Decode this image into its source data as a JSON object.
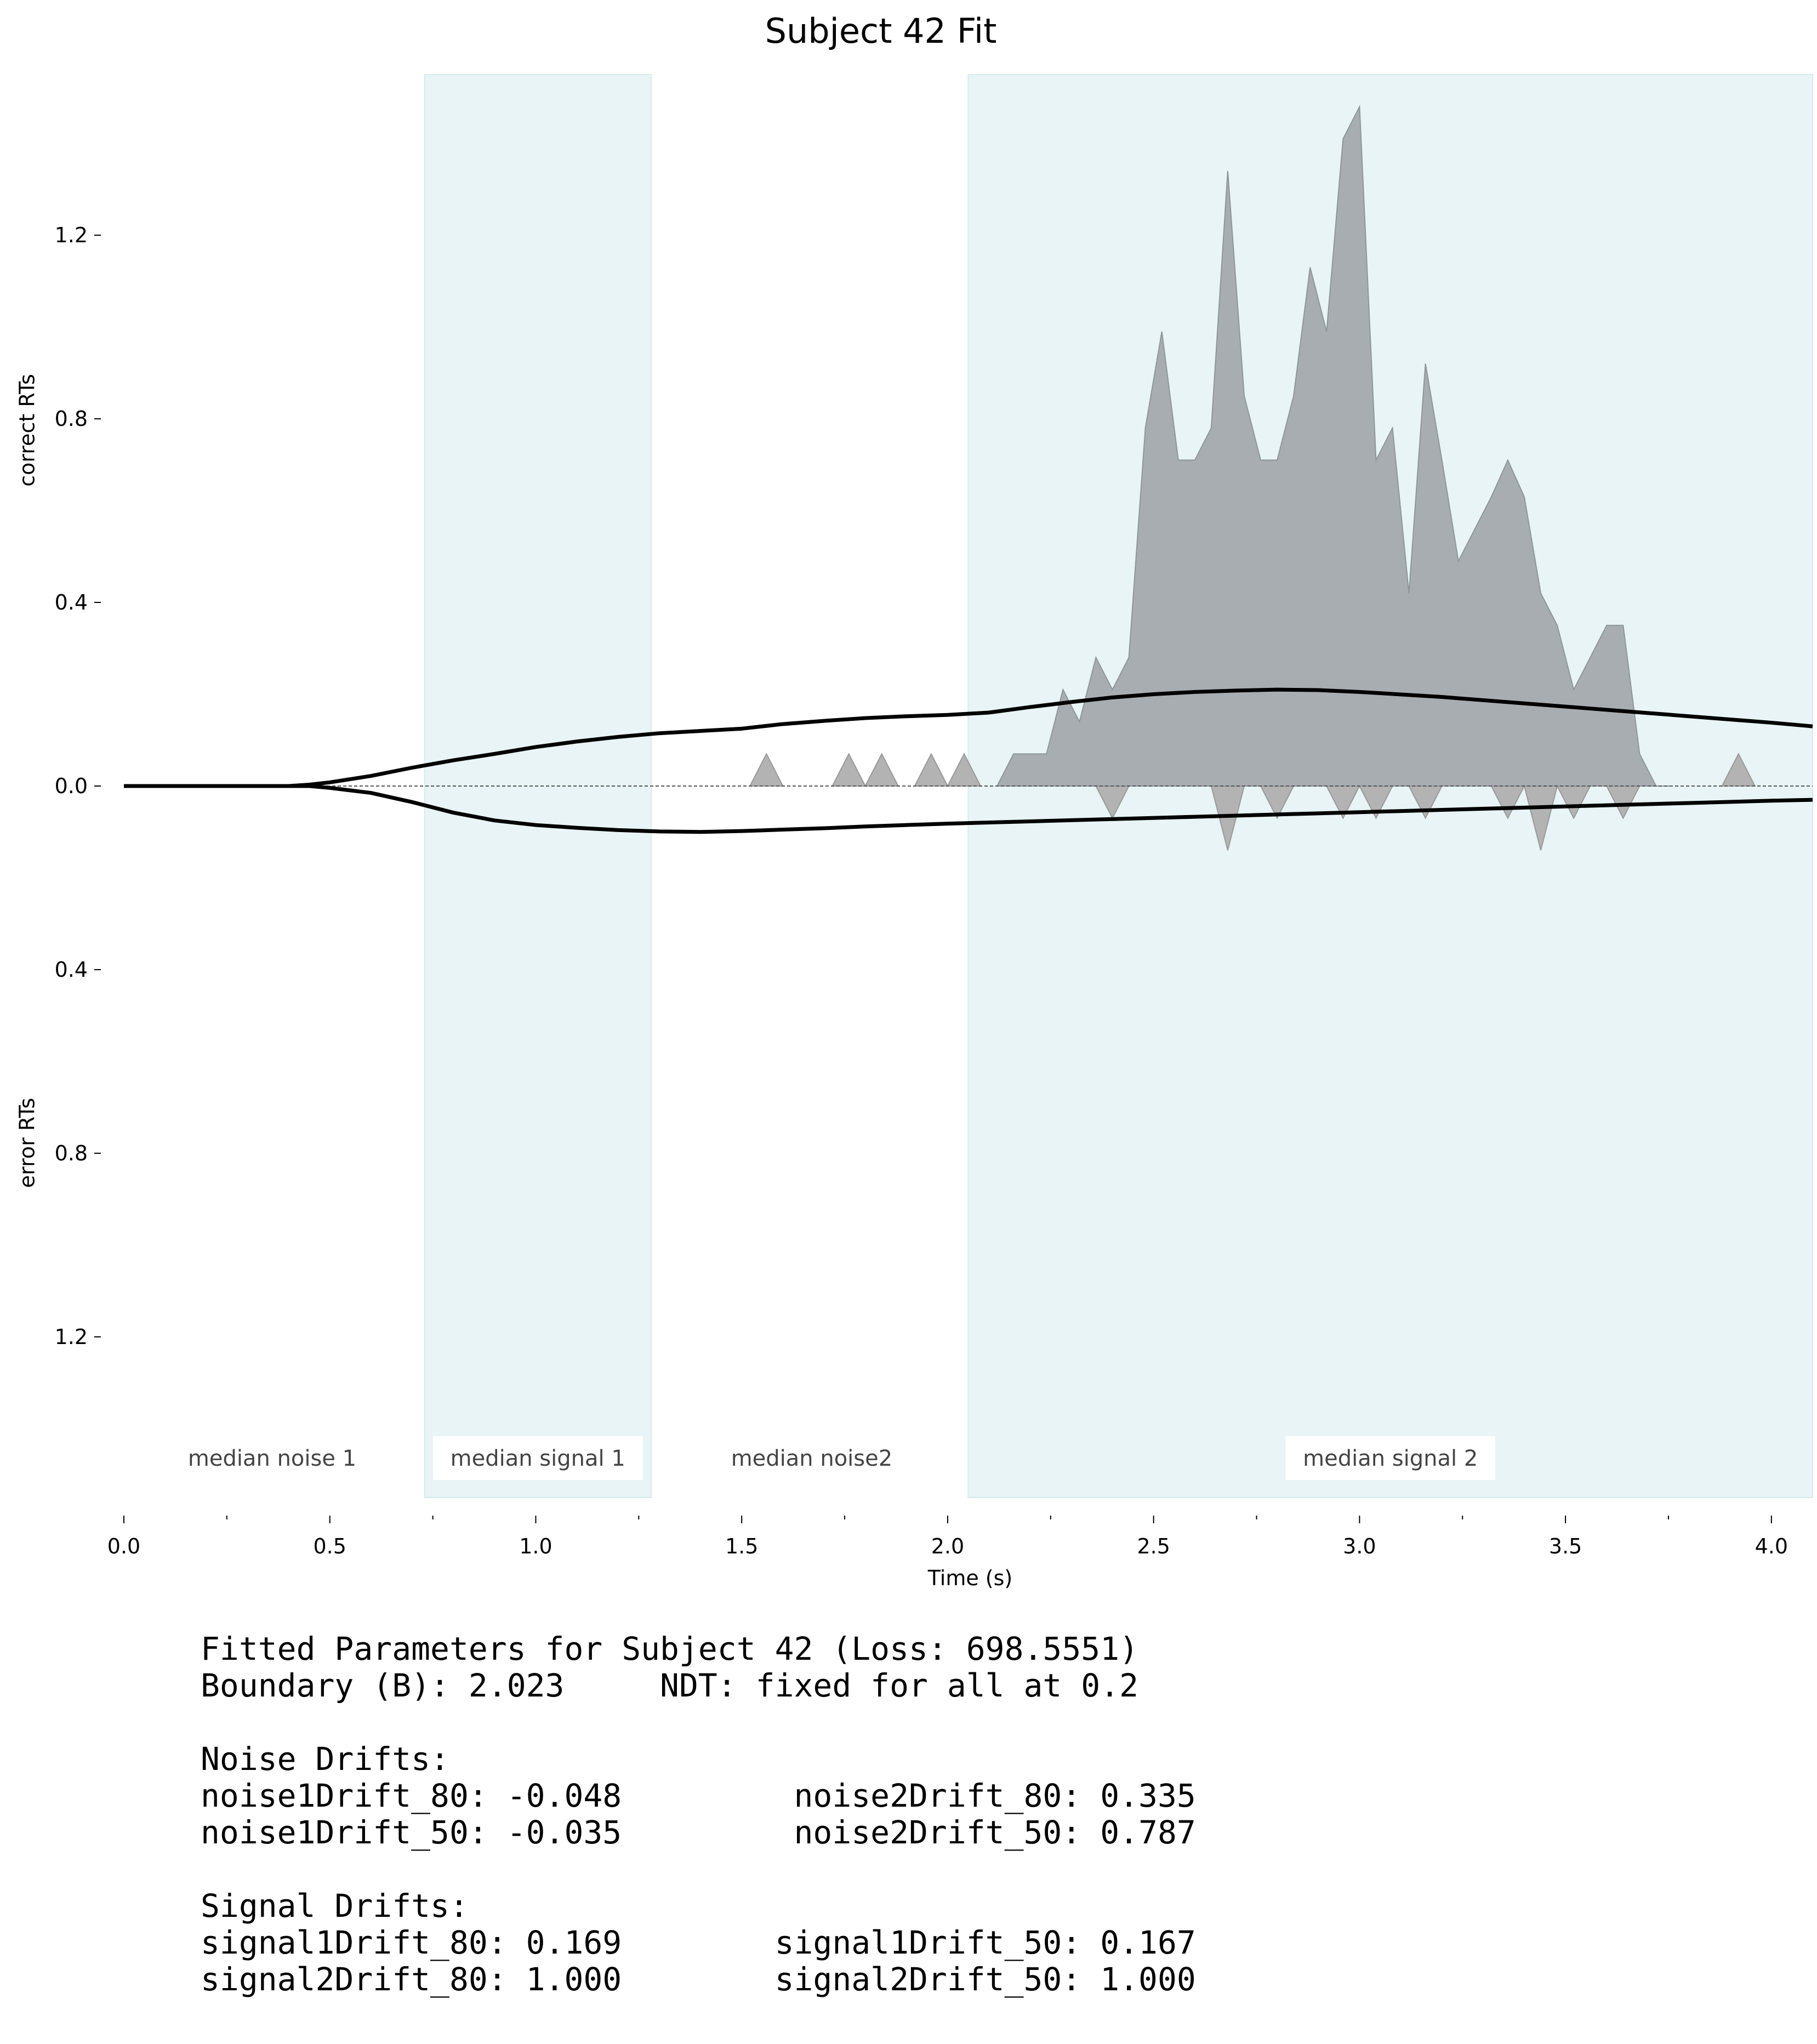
{
  "chart_data": {
    "type": "area",
    "title": "Subject 42 Fit",
    "xlabel": "Time (s)",
    "ylabel_top": "correct RTs",
    "ylabel_bottom": "error RTs",
    "xlim": [
      0.0,
      4.1
    ],
    "ylim": [
      -1.55,
      1.55
    ],
    "x_ticks": [
      0.0,
      0.5,
      1.0,
      1.5,
      2.0,
      2.5,
      3.0,
      3.5,
      4.0
    ],
    "x_tick_labels": [
      "0.0",
      "0.5",
      "1.0",
      "1.5",
      "2.0",
      "2.5",
      "3.0",
      "3.5",
      "4.0"
    ],
    "x_minor_ticks": [
      0.25,
      0.75,
      1.25,
      1.75,
      2.25,
      2.75,
      3.25,
      3.75
    ],
    "y_ticks": [
      1.2,
      0.8,
      0.4,
      0.0,
      -0.4,
      -0.8,
      -1.2
    ],
    "y_tick_labels": [
      "1.2",
      "0.8",
      "0.4",
      "0.0",
      "0.4",
      "0.8",
      "1.2"
    ],
    "regions": [
      {
        "x0": 0.73,
        "x1": 1.28,
        "color": "#e8f4f5",
        "shaded": true
      },
      {
        "x0": 2.05,
        "x1": 4.1,
        "color": "#e8f4f5",
        "shaded": true
      }
    ],
    "region_labels": [
      {
        "text": "median noise 1",
        "x": 0.36,
        "boxed": false
      },
      {
        "text": "median signal 1",
        "x": 1.005,
        "boxed": true
      },
      {
        "text": "median noise2",
        "x": 1.67,
        "boxed": false
      },
      {
        "text": "median signal 2",
        "x": 3.075,
        "boxed": true
      }
    ],
    "series": [
      {
        "kind": "histogram-correct",
        "color": "#a7adb1",
        "x": [
          2.12,
          2.16,
          2.24,
          2.28,
          2.32,
          2.36,
          2.4,
          2.44,
          2.48,
          2.52,
          2.56,
          2.6,
          2.64,
          2.68,
          2.72,
          2.76,
          2.8,
          2.84,
          2.88,
          2.92,
          2.96,
          3.0,
          3.04,
          3.08,
          3.12,
          3.16,
          3.2,
          3.24,
          3.28,
          3.32,
          3.36,
          3.4,
          3.44,
          3.48,
          3.52,
          3.56,
          3.6,
          3.64,
          3.68,
          3.72,
          3.76
        ],
        "y": [
          0.0,
          0.07,
          0.07,
          0.21,
          0.14,
          0.28,
          0.21,
          0.28,
          0.78,
          0.99,
          0.71,
          0.71,
          0.78,
          1.34,
          0.85,
          0.71,
          0.71,
          0.85,
          1.13,
          0.99,
          1.41,
          1.48,
          0.71,
          0.78,
          0.42,
          0.92,
          0.71,
          0.49,
          0.56,
          0.63,
          0.71,
          0.63,
          0.42,
          0.35,
          0.21,
          0.28,
          0.35,
          0.35,
          0.07,
          0.0,
          0.0
        ]
      },
      {
        "kind": "histogram-small-correct",
        "color": "#b3b3b3",
        "bumps": [
          1.56,
          1.76,
          1.84,
          1.96,
          2.04,
          3.92
        ]
      },
      {
        "kind": "histogram-error",
        "color": "#b3b3b3",
        "bumps": [
          [
            2.4,
            0.07
          ],
          [
            2.68,
            0.14
          ],
          [
            2.8,
            0.07
          ],
          [
            2.96,
            0.07
          ],
          [
            3.04,
            0.07
          ],
          [
            3.16,
            0.07
          ],
          [
            3.36,
            0.07
          ],
          [
            3.44,
            0.14
          ],
          [
            3.52,
            0.07
          ],
          [
            3.64,
            0.07
          ]
        ]
      },
      {
        "kind": "model-correct",
        "color": "#000000",
        "x": [
          0.0,
          0.3,
          0.4,
          0.45,
          0.5,
          0.6,
          0.7,
          0.8,
          0.9,
          1.0,
          1.1,
          1.2,
          1.3,
          1.4,
          1.5,
          1.6,
          1.7,
          1.8,
          1.9,
          2.0,
          2.1,
          2.2,
          2.3,
          2.4,
          2.5,
          2.6,
          2.7,
          2.8,
          2.9,
          3.0,
          3.2,
          3.4,
          3.6,
          3.8,
          4.0,
          4.1
        ],
        "y": [
          0.0,
          0.0,
          0.0,
          0.003,
          0.008,
          0.022,
          0.04,
          0.056,
          0.07,
          0.085,
          0.097,
          0.107,
          0.115,
          0.12,
          0.125,
          0.135,
          0.142,
          0.148,
          0.152,
          0.155,
          0.16,
          0.172,
          0.183,
          0.193,
          0.2,
          0.205,
          0.208,
          0.21,
          0.209,
          0.205,
          0.194,
          0.18,
          0.166,
          0.152,
          0.138,
          0.13
        ]
      },
      {
        "kind": "model-error",
        "color": "#000000",
        "x": [
          0.0,
          0.3,
          0.4,
          0.45,
          0.5,
          0.6,
          0.7,
          0.8,
          0.9,
          1.0,
          1.1,
          1.2,
          1.3,
          1.4,
          1.5,
          1.6,
          1.7,
          1.8,
          1.9,
          2.0,
          2.2,
          2.4,
          2.6,
          2.8,
          3.0,
          3.2,
          3.4,
          3.6,
          3.8,
          4.0,
          4.1
        ],
        "y": [
          0.0,
          0.0,
          0.0,
          0.0,
          -0.004,
          -0.015,
          -0.035,
          -0.058,
          -0.075,
          -0.085,
          -0.091,
          -0.096,
          -0.099,
          -0.1,
          -0.098,
          -0.095,
          -0.092,
          -0.088,
          -0.085,
          -0.082,
          -0.077,
          -0.072,
          -0.067,
          -0.062,
          -0.057,
          -0.052,
          -0.047,
          -0.042,
          -0.037,
          -0.032,
          -0.03
        ]
      }
    ]
  },
  "params": {
    "header": "Fitted Parameters for Subject 42 (Loss: 698.5551)",
    "boundary_line": "Boundary (B): 2.023     NDT: fixed for all at 0.2",
    "blank1": "",
    "noise_title": "Noise Drifts:",
    "noise_row1": "noise1Drift_80: -0.048         noise2Drift_80: 0.335",
    "noise_row2": "noise1Drift_50: -0.035         noise2Drift_50: 0.787",
    "blank2": "",
    "signal_title": "Signal Drifts:",
    "signal_row1": "signal1Drift_80: 0.169        signal1Drift_50: 0.167",
    "signal_row2": "signal2Drift_80: 1.000        signal2Drift_50: 1.000"
  }
}
